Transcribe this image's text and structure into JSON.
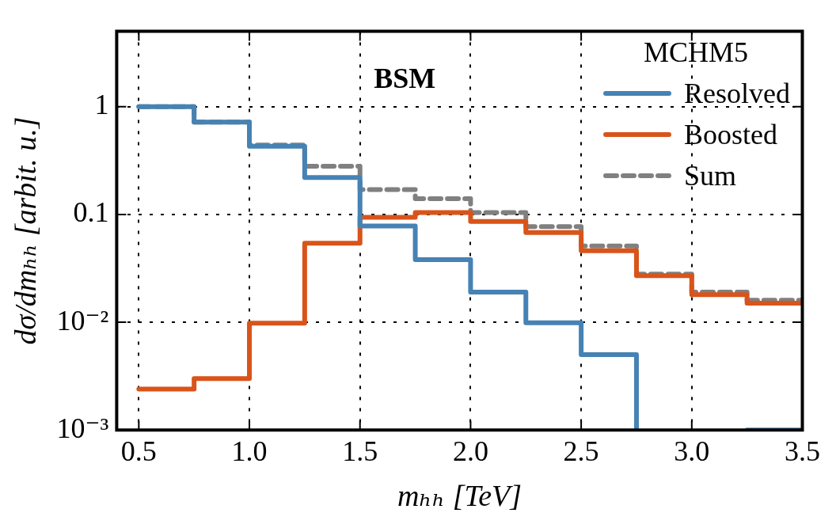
{
  "chart_data": {
    "type": "step",
    "xlabel": "mₕₕ [TeV]",
    "ylabel": "dσ/dmₕₕ [arbit. u.]",
    "legend_title": "MCHM5",
    "annotations": [
      "BSM"
    ],
    "x": [
      0.5,
      0.75,
      1.0,
      1.25,
      1.5,
      1.75,
      2.0,
      2.25,
      2.5,
      2.75,
      3.0,
      3.25,
      3.5
    ],
    "series": [
      {
        "name": "Resolved",
        "color": "#4682b4",
        "values": [
          1.0,
          0.72,
          0.43,
          0.22,
          0.078,
          0.038,
          0.019,
          0.0099,
          0.005,
          0.001,
          null,
          0.001,
          0.001
        ]
      },
      {
        "name": "Boosted",
        "color": "#d9541a",
        "values": [
          0.0024,
          0.003,
          0.0098,
          0.054,
          0.094,
          0.104,
          0.086,
          0.068,
          0.046,
          0.027,
          0.018,
          0.015,
          0.015
        ]
      },
      {
        "name": "Sum",
        "color": "#808080",
        "line_style": "dashed",
        "values": [
          1.0,
          0.72,
          0.44,
          0.28,
          0.17,
          0.14,
          0.104,
          0.077,
          0.051,
          0.028,
          0.019,
          0.016,
          0.016
        ]
      }
    ],
    "xlim": [
      0.4,
      3.5
    ],
    "xticks": [
      0.5,
      {
        "value": 1,
        "label": "1.0"
      },
      1.5,
      {
        "value": 2,
        "label": "2.0"
      },
      2.5,
      {
        "value": 3,
        "label": "3.0"
      },
      3.5
    ],
    "ylim": [
      0.001,
      5
    ],
    "yticks": [
      {
        "value": 0.001,
        "label": "10⁻³"
      },
      {
        "value": 0.01,
        "label": "10⁻²"
      },
      {
        "value": 0.1,
        "label": "0.1"
      },
      {
        "value": 1,
        "label": "1"
      }
    ],
    "log": "y",
    "grid": true,
    "legend": "top right"
  }
}
